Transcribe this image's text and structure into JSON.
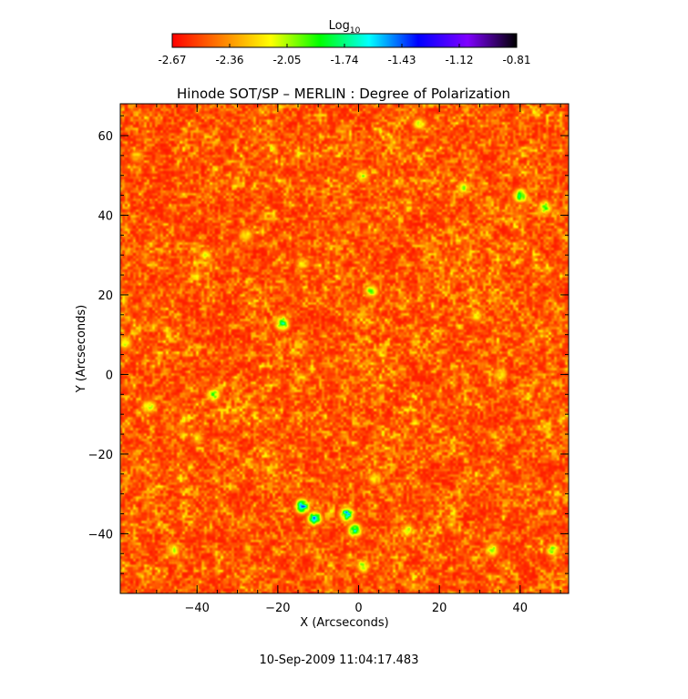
{
  "chart_data": {
    "type": "heatmap",
    "title": "Hinode SOT/SP – MERLIN : Degree of Polarization",
    "xlabel": "X (Arcseconds)",
    "ylabel": "Y (Arcseconds)",
    "xlim": [
      -59,
      52
    ],
    "ylim": [
      -55,
      68
    ],
    "x_ticks": [
      -40,
      -20,
      0,
      20,
      40
    ],
    "y_ticks": [
      -40,
      -20,
      0,
      20,
      40,
      60
    ],
    "x_minor_step": 5,
    "y_minor_step": 5,
    "colorbar": {
      "label_base": "Log",
      "label_sub": "10",
      "min": -2.67,
      "max": -0.81,
      "ticks": [
        "-2.67",
        "-2.36",
        "-2.05",
        "-1.74",
        "-1.43",
        "-1.12",
        "-0.81"
      ],
      "colormap": [
        "#ff0000",
        "#ff7f00",
        "#ffff00",
        "#00ff00",
        "#00ffff",
        "#0000ff",
        "#7f00ff",
        "#000000"
      ]
    },
    "background_level": -2.62,
    "enhanced_regions": [
      {
        "x": -14,
        "y": -33,
        "level": -1.25
      },
      {
        "x": -11,
        "y": -36,
        "level": -1.35
      },
      {
        "x": -3,
        "y": -35,
        "level": -1.3
      },
      {
        "x": -1,
        "y": -39,
        "level": -1.5
      },
      {
        "x": 40,
        "y": 45,
        "level": -1.6
      },
      {
        "x": 46,
        "y": 42,
        "level": -1.7
      },
      {
        "x": -19,
        "y": 13,
        "level": -1.55
      },
      {
        "x": -36,
        "y": -5,
        "level": -1.8
      },
      {
        "x": -52,
        "y": -8,
        "level": -1.85
      },
      {
        "x": 3,
        "y": 21,
        "level": -1.85
      },
      {
        "x": 33,
        "y": -44,
        "level": -1.8
      },
      {
        "x": 48,
        "y": -44,
        "level": -1.85
      },
      {
        "x": 1,
        "y": 50,
        "level": -1.9
      },
      {
        "x": 26,
        "y": 47,
        "level": -1.95
      },
      {
        "x": 1,
        "y": -48,
        "level": -1.85
      },
      {
        "x": -46,
        "y": -44,
        "level": -1.95
      },
      {
        "x": 35,
        "y": 0,
        "level": -2.0
      },
      {
        "x": 12,
        "y": -39,
        "level": -1.95
      },
      {
        "x": -28,
        "y": 35,
        "level": -2.0
      },
      {
        "x": -14,
        "y": 28,
        "level": -2.05
      },
      {
        "x": 15,
        "y": 63,
        "level": -1.95
      },
      {
        "x": -58,
        "y": 8,
        "level": -1.95
      },
      {
        "x": 4,
        "y": -26,
        "level": -2.0
      },
      {
        "x": -38,
        "y": 30,
        "level": -2.05
      },
      {
        "x": 29,
        "y": 15,
        "level": -2.05
      },
      {
        "x": -55,
        "y": 55,
        "level": -2.1
      },
      {
        "x": 50,
        "y": -52,
        "level": -2.05
      },
      {
        "x": -40,
        "y": -16,
        "level": -2.1
      }
    ]
  },
  "footer": {
    "timestamp": "10-Sep-2009 11:04:17.483"
  }
}
